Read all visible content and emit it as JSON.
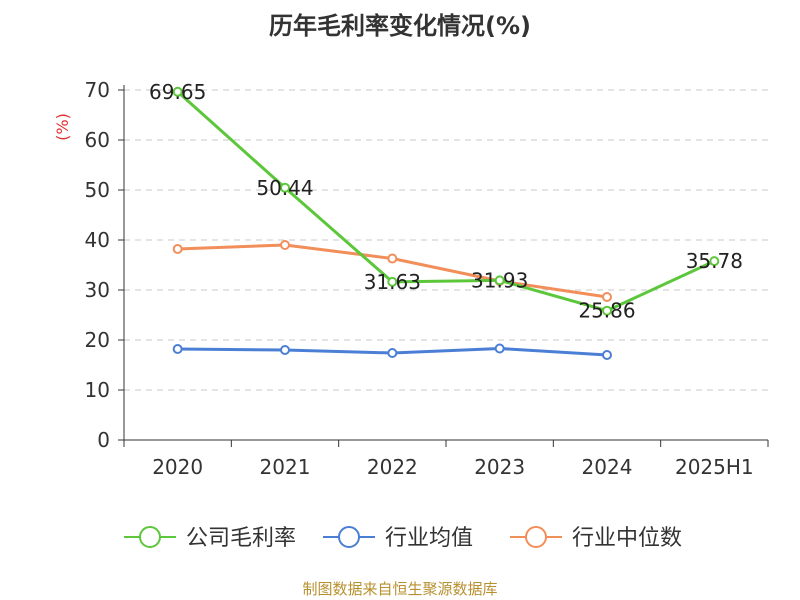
{
  "page": {
    "title": "历年毛利率变化情况(%)",
    "source_note": "制图数据来自恒生聚源数据库"
  },
  "chart_data": {
    "type": "line",
    "title": "历年毛利率变化情况(%)",
    "ylabel": "(%)",
    "xlabel": "",
    "categories": [
      "2020",
      "2021",
      "2022",
      "2023",
      "2024",
      "2025H1"
    ],
    "ylim": [
      0,
      70
    ],
    "yticks": [
      0,
      10,
      20,
      30,
      40,
      50,
      60,
      70
    ],
    "grid": true,
    "legend_position": "bottom",
    "series": [
      {
        "name": "公司毛利率",
        "color": "#5cc73a",
        "show_labels": true,
        "values": [
          69.65,
          50.44,
          31.63,
          31.93,
          25.86,
          35.78
        ]
      },
      {
        "name": "行业均值",
        "color": "#4b7fd6",
        "show_labels": false,
        "values": [
          18.2,
          18.0,
          17.4,
          18.3,
          17.0,
          null
        ]
      },
      {
        "name": "行业中位数",
        "color": "#f28e5a",
        "show_labels": false,
        "values": [
          38.2,
          39.0,
          36.3,
          31.8,
          28.6,
          null
        ]
      }
    ],
    "unit_color": "#e03030"
  }
}
